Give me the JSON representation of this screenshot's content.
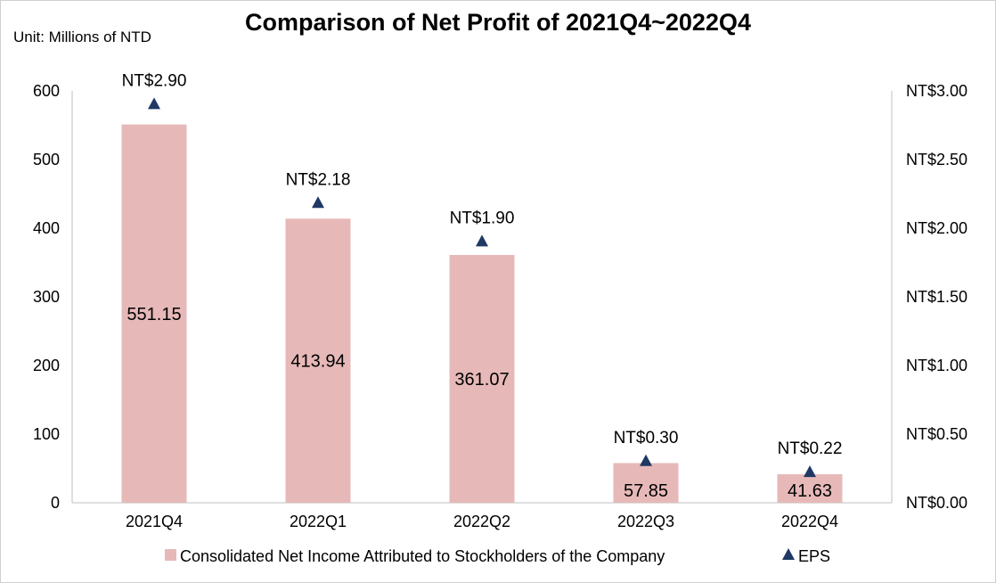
{
  "chart_data": {
    "type": "bar",
    "title": "Comparison of Net Profit of 2021Q4~2022Q4",
    "unit_label": "Unit: Millions of NTD",
    "categories": [
      "2021Q4",
      "2022Q1",
      "2022Q2",
      "2022Q3",
      "2022Q4"
    ],
    "series": [
      {
        "name": "Consolidated Net Income Attributed to Stockholders of the Company",
        "type": "bar",
        "axis": "left",
        "values": [
          551.15,
          413.94,
          361.07,
          57.85,
          41.63
        ],
        "value_labels": [
          "551.15",
          "413.94",
          "361.07",
          "57.85",
          "41.63"
        ],
        "color": "#e6b9b8"
      },
      {
        "name": "EPS",
        "type": "scatter",
        "marker": "triangle",
        "axis": "right",
        "values": [
          2.9,
          2.18,
          1.9,
          0.3,
          0.22
        ],
        "value_labels": [
          "NT$2.90",
          "NT$2.18",
          "NT$1.90",
          "NT$0.30",
          "NT$0.22"
        ],
        "color": "#1f3864"
      }
    ],
    "y_left": {
      "min": 0,
      "max": 600,
      "ticks": [
        "0",
        "100",
        "200",
        "300",
        "400",
        "500",
        "600"
      ]
    },
    "y_right": {
      "min": 0,
      "max": 3,
      "ticks": [
        "NT$0.00",
        "NT$0.50",
        "NT$1.00",
        "NT$1.50",
        "NT$2.00",
        "NT$2.50",
        "NT$3.00"
      ]
    },
    "grid": false,
    "legend_position": "bottom"
  }
}
